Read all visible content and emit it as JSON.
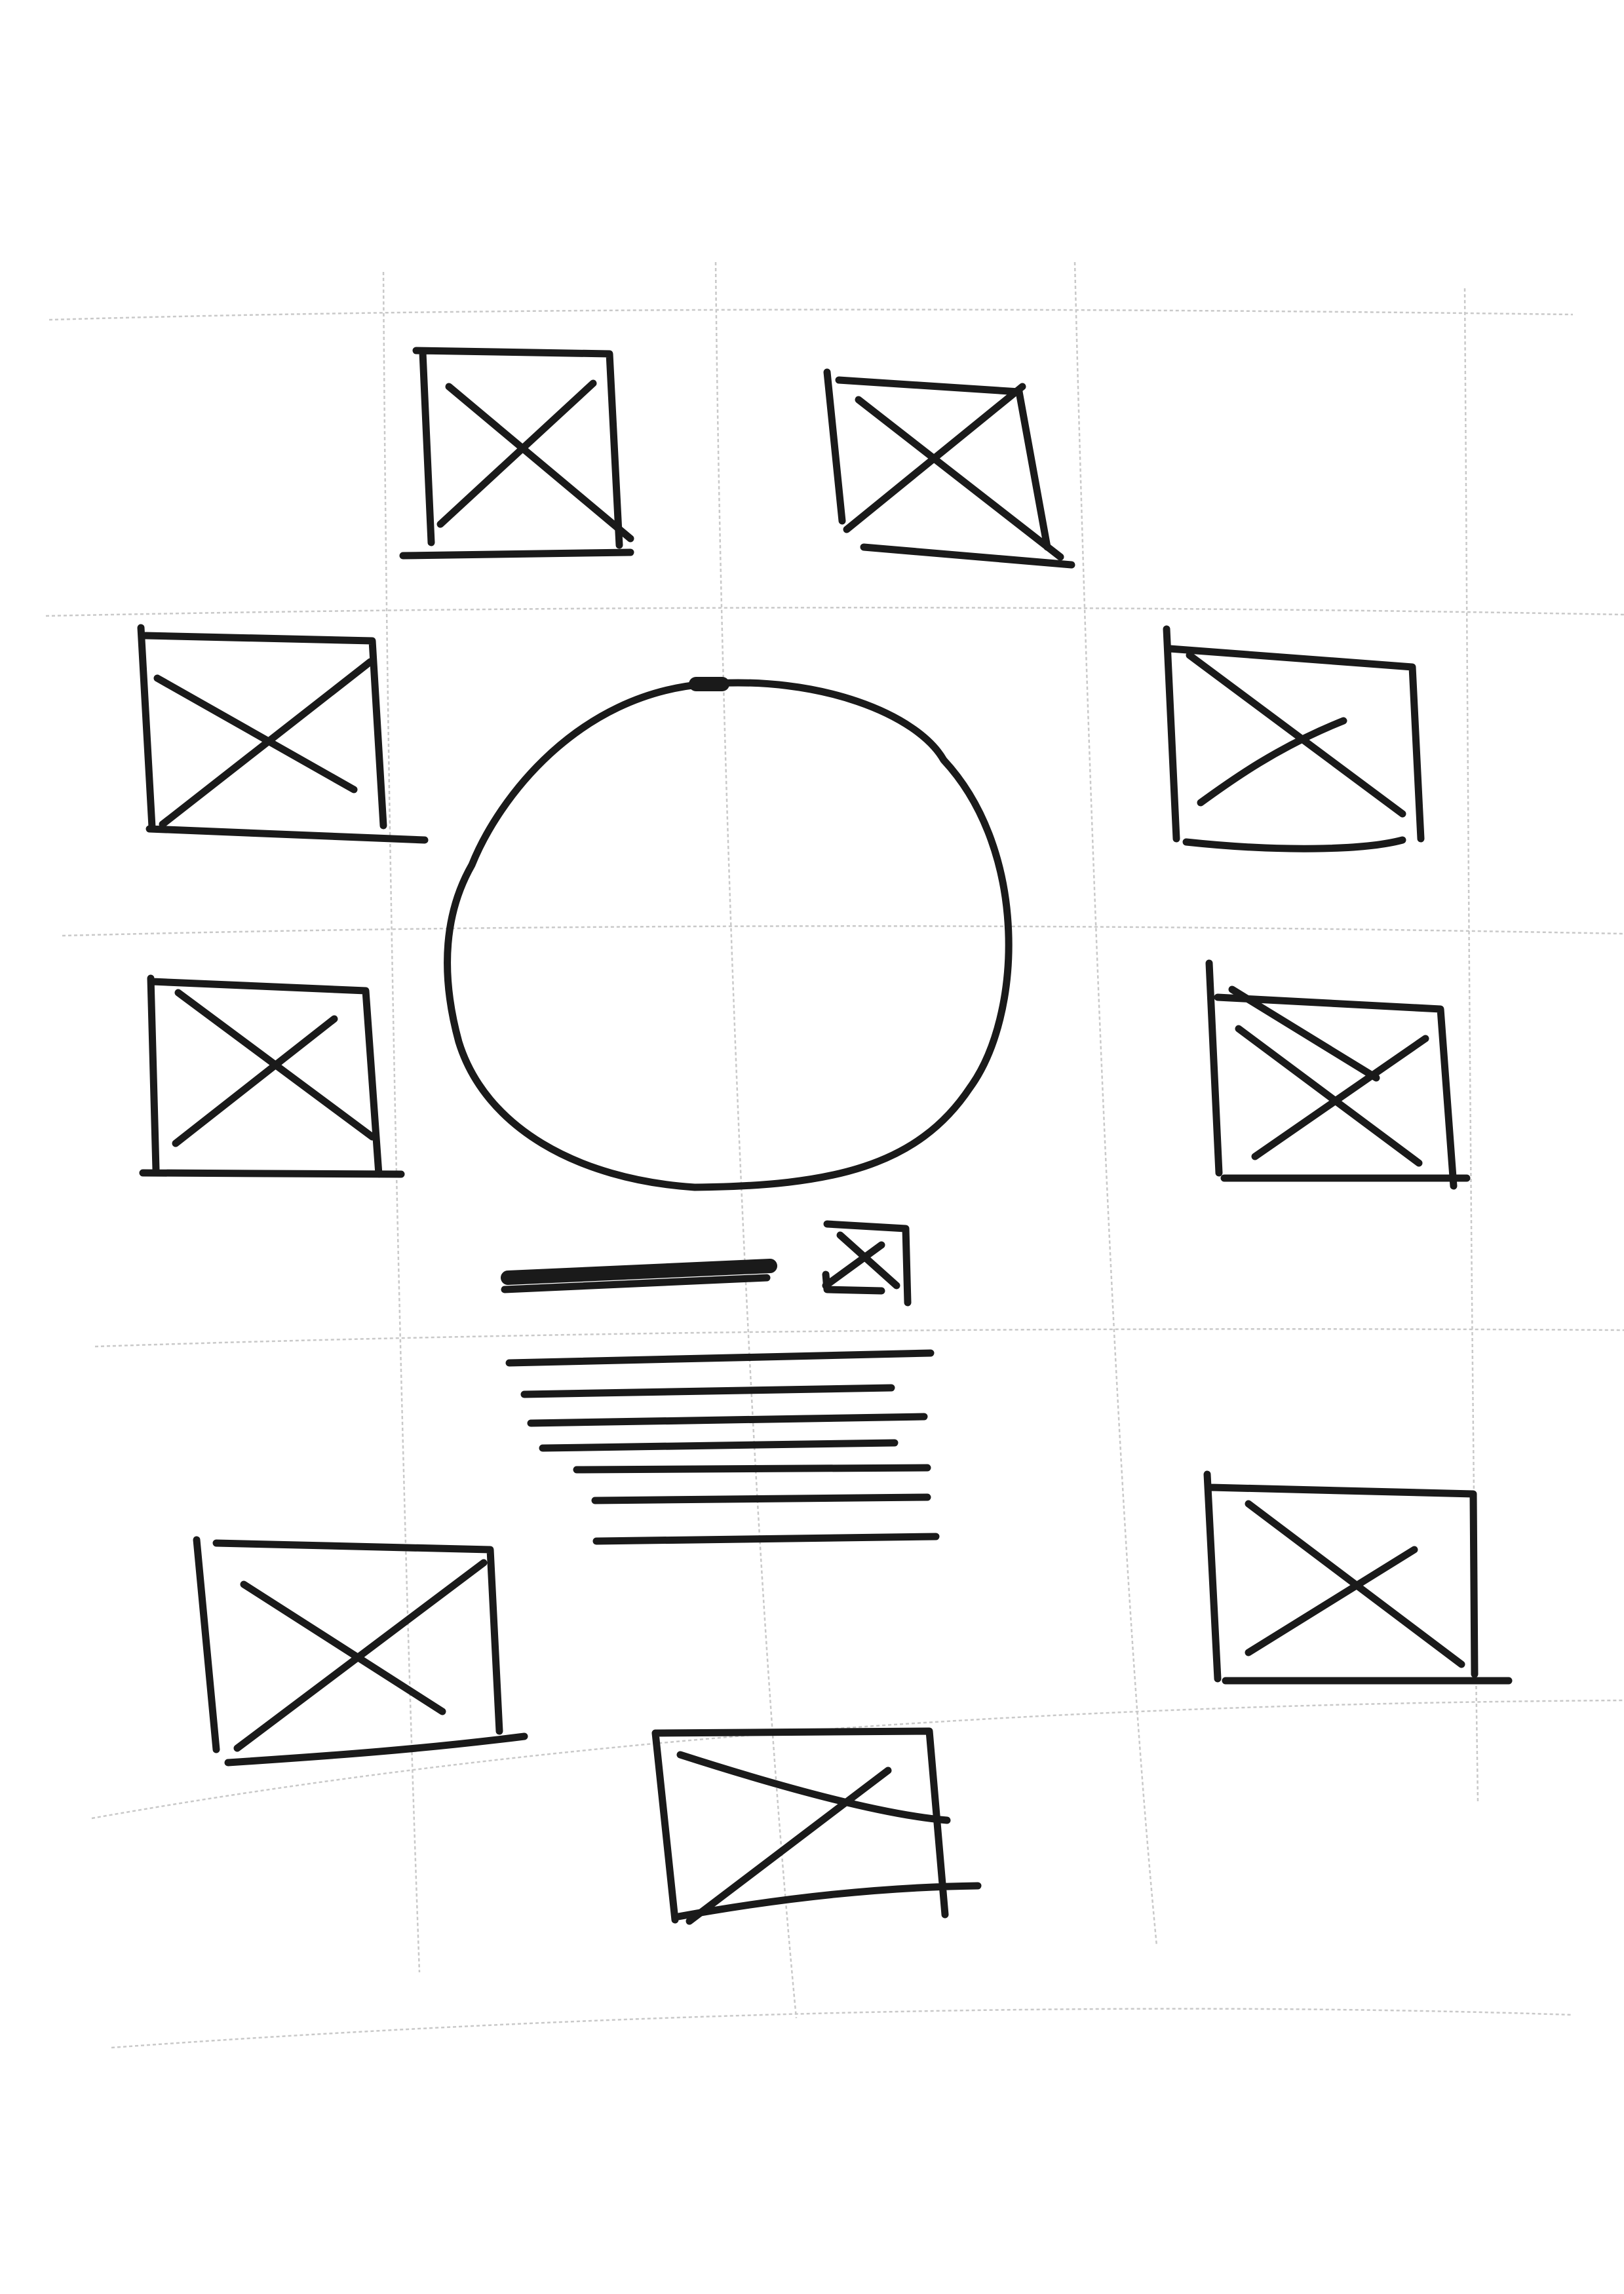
{
  "colors": {
    "paper": "#ffffff",
    "ink": "#1a1a1a",
    "grid": "#c9c9c9"
  },
  "image_placeholders": [
    {
      "name": "top-left"
    },
    {
      "name": "top-right"
    },
    {
      "name": "upper-left"
    },
    {
      "name": "upper-right"
    },
    {
      "name": "middle-left"
    },
    {
      "name": "middle-right"
    },
    {
      "name": "lower-right"
    },
    {
      "name": "bottom-left"
    },
    {
      "name": "bottom-center"
    }
  ],
  "central_circle": {
    "name": "hero-circle"
  },
  "caption": {
    "heading_icon": "image-placeholder-icon",
    "text_line_count": 7
  }
}
